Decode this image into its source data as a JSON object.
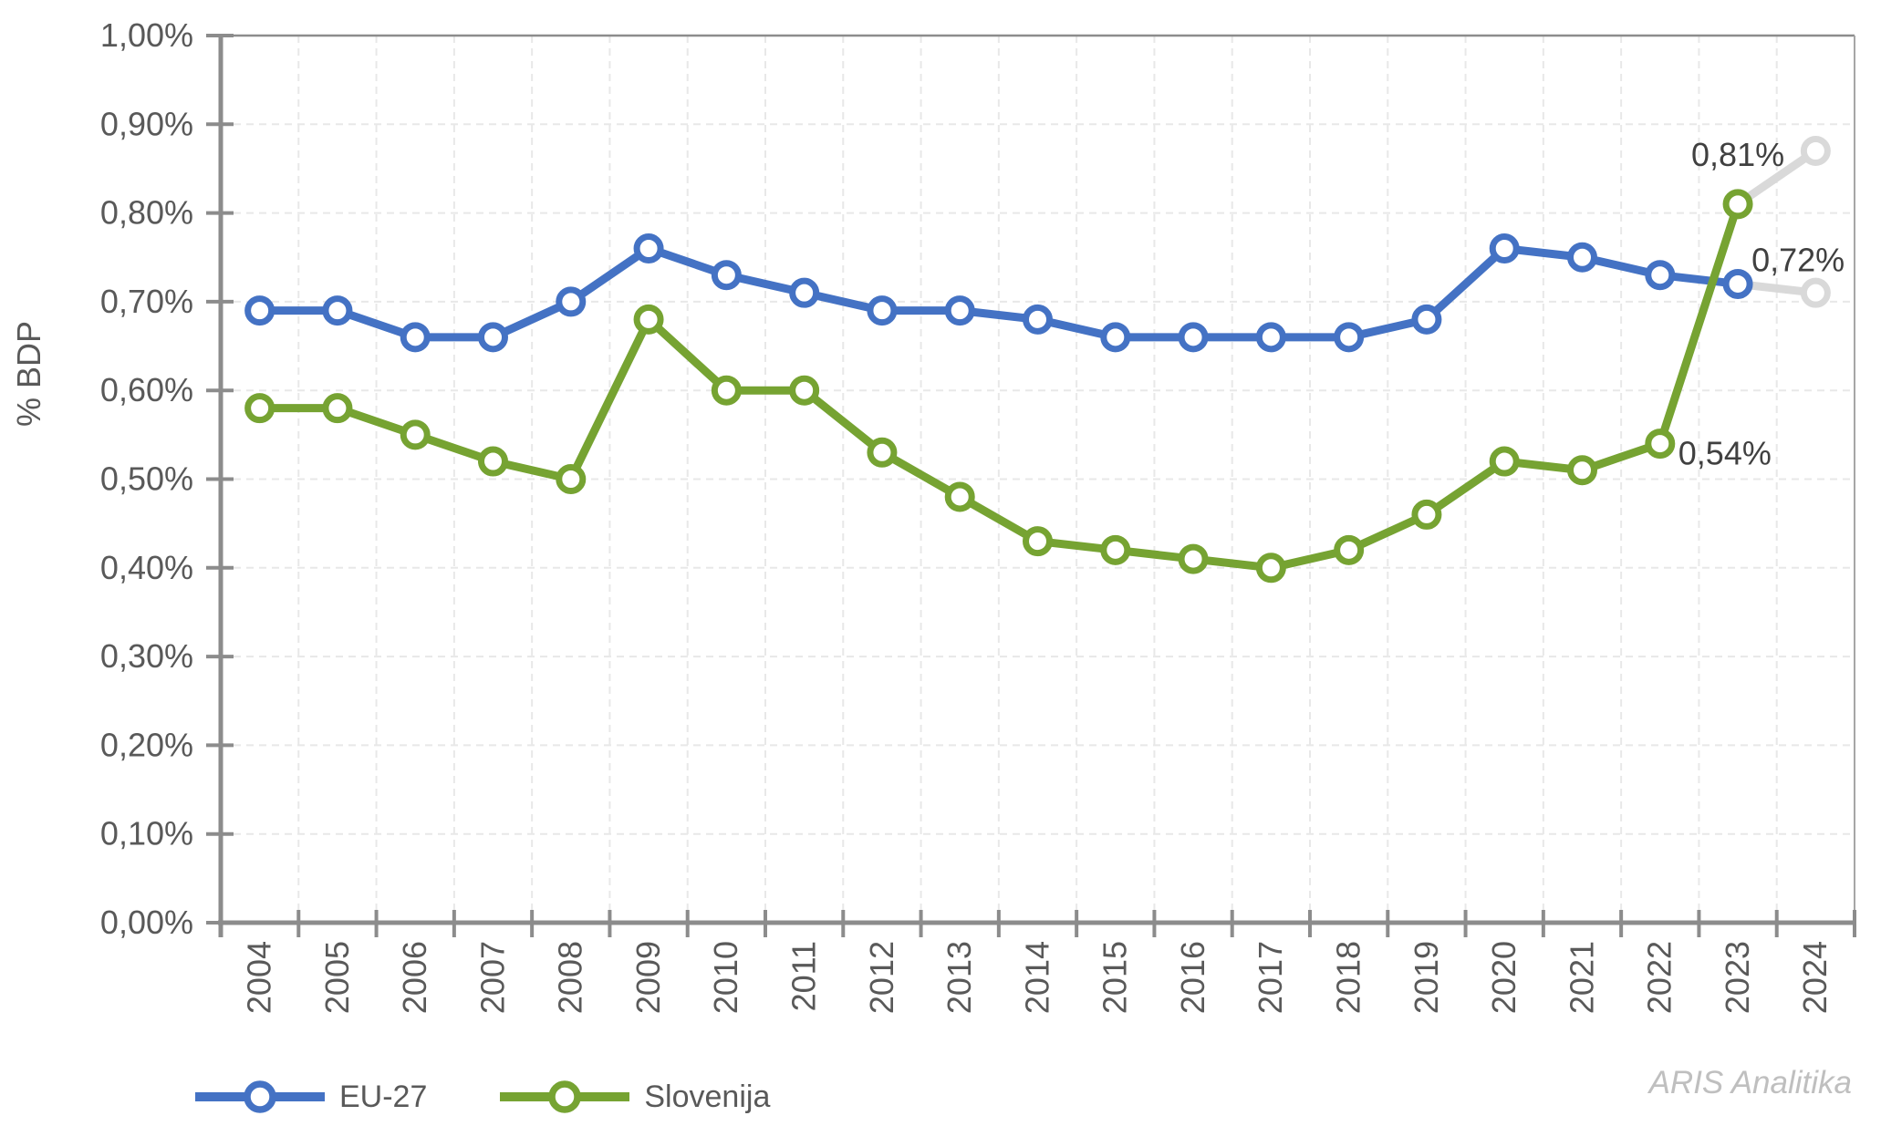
{
  "chart_data": {
    "type": "line",
    "title": "",
    "ylabel": "% BDP",
    "categories": [
      "2004",
      "2005",
      "2006",
      "2007",
      "2008",
      "2009",
      "2010",
      "2011",
      "2012",
      "2013",
      "2014",
      "2015",
      "2016",
      "2017",
      "2018",
      "2019",
      "2020",
      "2021",
      "2022",
      "2023",
      "2024"
    ],
    "y_axis": {
      "min": 0,
      "max": 1.0,
      "step": 0.1,
      "tick_labels": [
        "0,00%",
        "0,10%",
        "0,20%",
        "0,30%",
        "0,40%",
        "0,50%",
        "0,60%",
        "0,70%",
        "0,80%",
        "0,90%",
        "1,00%"
      ]
    },
    "series": [
      {
        "name": "EU-27",
        "color": "#4472C4",
        "values": [
          0.69,
          0.69,
          0.66,
          0.66,
          0.7,
          0.76,
          0.73,
          0.71,
          0.69,
          0.69,
          0.68,
          0.66,
          0.66,
          0.66,
          0.66,
          0.68,
          0.76,
          0.75,
          0.73,
          0.72,
          0.71
        ]
      },
      {
        "name": "Slovenija",
        "color": "#76A332",
        "values": [
          0.58,
          0.58,
          0.55,
          0.52,
          0.5,
          0.68,
          0.6,
          0.6,
          0.53,
          0.48,
          0.43,
          0.42,
          0.41,
          0.4,
          0.42,
          0.46,
          0.52,
          0.51,
          0.54,
          0.81,
          0.87
        ]
      }
    ],
    "projection": {
      "color": "#D9D9D9",
      "segment": "2023-2024",
      "last_point_is_projection": true
    },
    "data_labels": [
      {
        "series": "Slovenija",
        "category": "2023",
        "text": "0,81%",
        "placement": "above"
      },
      {
        "series": "EU-27",
        "category": "2023",
        "text": "0,72%",
        "placement": "above-right"
      },
      {
        "series": "Slovenija",
        "category": "2022",
        "text": "0,54%",
        "placement": "right"
      }
    ],
    "legend_position": "bottom-left",
    "grid": true
  },
  "watermark": "ARIS Analitika"
}
